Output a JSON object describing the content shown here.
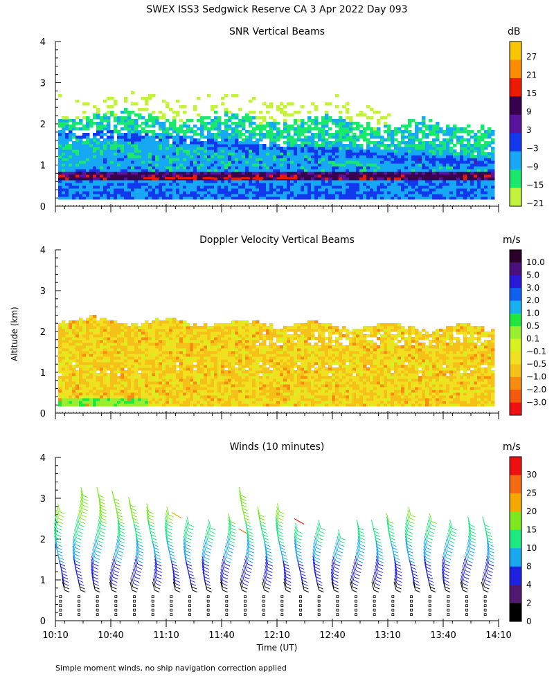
{
  "title": "SWEX ISS3 Sedgwick Reserve CA   3 Apr 2022 Day 093",
  "y_axis_label": "Altitude (km)",
  "x_axis_label": "Time (UT)",
  "footnote": "Simple moment winds, no ship navigation correction applied",
  "x_ticks": [
    "10:10",
    "10:40",
    "11:10",
    "11:40",
    "12:10",
    "12:40",
    "13:10",
    "13:40",
    "14:10"
  ],
  "y_ticks": [
    "0",
    "1",
    "2",
    "3",
    "4"
  ],
  "panels": [
    {
      "id": "snr",
      "title": "SNR Vertical Beams",
      "unit": "dB",
      "colorbar_labels": [
        "27",
        "21",
        "15",
        "9",
        "3",
        "−3",
        "−9",
        "−15",
        "−21"
      ],
      "colorbar_colors": [
        "#f7c600",
        "#ff8c00",
        "#ee1a00",
        "#3a0050",
        "#5a12a0",
        "#1238ee",
        "#17a8f5",
        "#19e86a",
        "#c2f23c"
      ]
    },
    {
      "id": "velocity",
      "title": "Doppler Velocity Vertical Beams",
      "unit": "m/s",
      "colorbar_labels": [
        "10.0",
        "5.0",
        "3.0",
        "2.0",
        "1.0",
        "0.5",
        "0.1",
        "−0.1",
        "−0.5",
        "−1.0",
        "−2.0",
        "−3.0"
      ],
      "colorbar_colors": [
        "#2a0028",
        "#4a1080",
        "#2a1ad8",
        "#1060f0",
        "#17b0f0",
        "#1ee840",
        "#9aee30",
        "#d8f020",
        "#f0e020",
        "#f5c018",
        "#f88c10",
        "#f55a0a",
        "#f01010"
      ]
    },
    {
      "id": "winds",
      "title": "Winds (10 minutes)",
      "unit": "m/s",
      "colorbar_labels": [
        "30",
        "25",
        "20",
        "15",
        "10",
        "8",
        "4",
        "2",
        "0"
      ],
      "colorbar_colors": [
        "#ee1010",
        "#f56a10",
        "#f5a800",
        "#7ce81e",
        "#1ee880",
        "#18a8f0",
        "#2020e0",
        "#501a70",
        "#000000"
      ]
    }
  ],
  "chart_data": [
    {
      "type": "heatmap",
      "title": "SNR Vertical Beams",
      "xlabel": "Time (UT)",
      "ylabel": "Altitude (km)",
      "x_range": [
        "10:10",
        "14:10"
      ],
      "ylim": [
        0,
        4
      ],
      "colorbar_unit": "dB",
      "colorbar_ticks": [
        27,
        21,
        15,
        9,
        3,
        -3,
        -9,
        -15,
        -21
      ],
      "layers": [
        {
          "altitude_km": 0.7,
          "snr_db": 12,
          "note": "strong persistent band"
        },
        {
          "altitude_km": 1.0,
          "snr_db": -3
        },
        {
          "altitude_km": 1.6,
          "snr_db": 3
        },
        {
          "altitude_km": 2.0,
          "snr_db": -15
        },
        {
          "altitude_km": 2.6,
          "snr_db": -21
        }
      ]
    },
    {
      "type": "heatmap",
      "title": "Doppler Velocity Vertical Beams",
      "xlabel": "Time (UT)",
      "ylabel": "Altitude (km)",
      "x_range": [
        "10:10",
        "14:10"
      ],
      "ylim": [
        0,
        4
      ],
      "colorbar_unit": "m/s",
      "colorbar_ticks": [
        10.0,
        5.0,
        3.0,
        2.0,
        1.0,
        0.5,
        0.1,
        -0.1,
        -0.5,
        -1.0,
        -2.0,
        -3.0
      ],
      "typical_velocity_ms": -0.4
    },
    {
      "type": "scatter",
      "title": "Winds (10 minutes)",
      "xlabel": "Time (UT)",
      "ylabel": "Altitude (km)",
      "x_range": [
        "10:10",
        "14:10"
      ],
      "ylim": [
        0,
        4
      ],
      "colorbar_unit": "m/s",
      "colorbar_ticks": [
        30,
        25,
        20,
        15,
        10,
        8,
        4,
        2,
        0
      ],
      "profile_times": [
        "10:15",
        "10:25",
        "10:35",
        "10:45",
        "10:55",
        "11:05",
        "11:15",
        "11:25",
        "11:35",
        "11:45",
        "11:55",
        "12:05",
        "12:15",
        "12:25",
        "12:35",
        "12:45",
        "12:55",
        "13:05",
        "13:15",
        "13:25",
        "13:35",
        "13:45",
        "13:55",
        "14:05"
      ],
      "profile_top_km": [
        2.7,
        3.1,
        3.1,
        3.0,
        2.9,
        2.7,
        2.6,
        2.4,
        2.3,
        2.5,
        3.1,
        2.6,
        2.7,
        2.2,
        2.3,
        2.1,
        2.3,
        2.3,
        2.5,
        2.6,
        2.5,
        2.3,
        2.4,
        2.4
      ],
      "typical_speed_ms": [
        {
          "altitude_km": 0.8,
          "speed_ms": 4
        },
        {
          "altitude_km": 1.5,
          "speed_ms": 10
        },
        {
          "altitude_km": 2.2,
          "speed_ms": 15
        }
      ]
    }
  ]
}
